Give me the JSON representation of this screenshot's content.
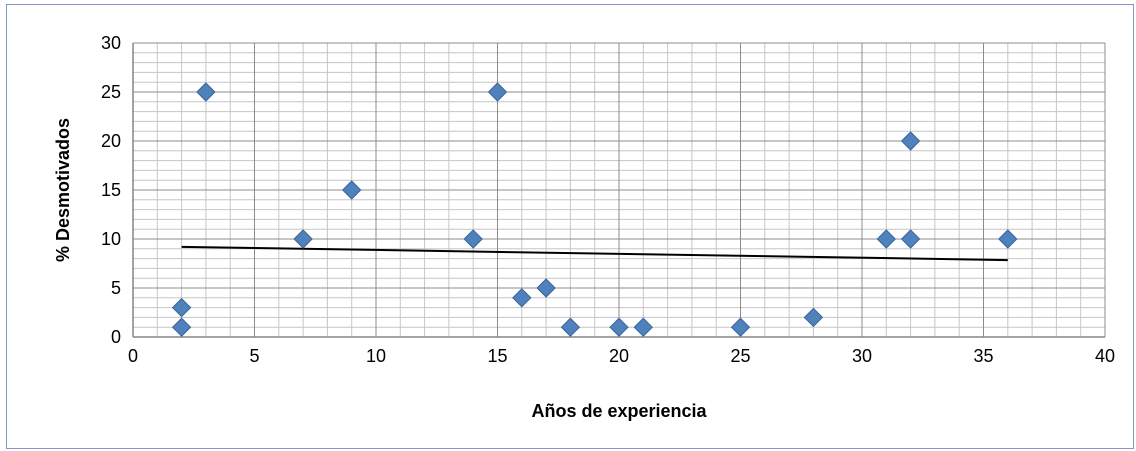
{
  "chart_data": {
    "type": "scatter",
    "xlabel": "Años de experiencia",
    "ylabel": "% Desmotivados",
    "xlim": [
      0,
      40
    ],
    "ylim": [
      0,
      30
    ],
    "x_ticks": [
      "0",
      "5",
      "10",
      "15",
      "20",
      "25",
      "30",
      "35",
      "40"
    ],
    "y_ticks": [
      "0",
      "5",
      "10",
      "15",
      "20",
      "25",
      "30"
    ],
    "grid": true,
    "legend": "none",
    "marker": "diamond",
    "marker_color": "#4f81bd",
    "points": [
      {
        "x": 2,
        "y": 3
      },
      {
        "x": 2,
        "y": 1
      },
      {
        "x": 3,
        "y": 25
      },
      {
        "x": 7,
        "y": 10
      },
      {
        "x": 9,
        "y": 15
      },
      {
        "x": 14,
        "y": 10
      },
      {
        "x": 15,
        "y": 25
      },
      {
        "x": 16,
        "y": 4
      },
      {
        "x": 17,
        "y": 5
      },
      {
        "x": 18,
        "y": 1
      },
      {
        "x": 20,
        "y": 1
      },
      {
        "x": 21,
        "y": 1
      },
      {
        "x": 25,
        "y": 1
      },
      {
        "x": 28,
        "y": 2
      },
      {
        "x": 31,
        "y": 10
      },
      {
        "x": 32,
        "y": 20
      },
      {
        "x": 32,
        "y": 10
      },
      {
        "x": 36,
        "y": 10
      }
    ],
    "trendline": {
      "type": "linear",
      "x": [
        2,
        36
      ],
      "y": [
        9.2,
        7.85
      ],
      "color": "#000000"
    }
  }
}
